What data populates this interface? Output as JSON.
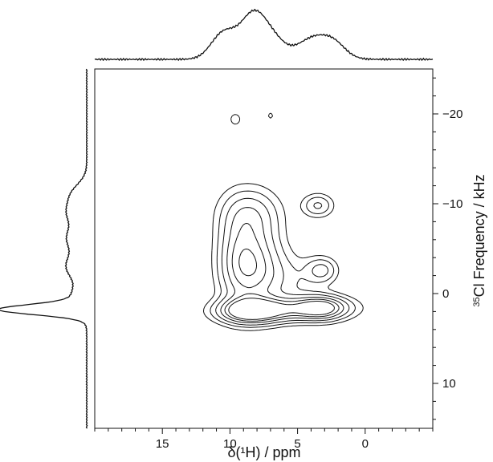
{
  "chart_data": {
    "type": "contour",
    "title": "",
    "xlabel": "δ(¹H) / ppm",
    "ylabel_prefix": "35",
    "ylabel": "Cl Frequency / kHz",
    "xlim": [
      20,
      -5
    ],
    "ylim": [
      -25,
      15
    ],
    "x_ticks": [
      15,
      10,
      5,
      0
    ],
    "x_tick_labels": [
      "15",
      "10",
      "5",
      "0"
    ],
    "y_ticks": [
      -20,
      -10,
      0,
      10
    ],
    "y_tick_labels": [
      "−20",
      "−10",
      "0",
      "10"
    ],
    "grid": false,
    "legend": "none",
    "peaks": [
      {
        "x": 8.3,
        "y": -3.2,
        "sx": 1.4,
        "sy": 3.2,
        "a": 0.55
      },
      {
        "x": 8.6,
        "y": 1.9,
        "sx": 1.4,
        "sy": 0.9,
        "a": 0.55
      },
      {
        "x": 7.6,
        "y": 2.0,
        "sx": 2.3,
        "sy": 0.9,
        "a": 0.35
      },
      {
        "x": 3.2,
        "y": 1.6,
        "sx": 1.2,
        "sy": 0.9,
        "a": 0.5
      },
      {
        "x": 4.3,
        "y": 1.6,
        "sx": 2.4,
        "sy": 0.9,
        "a": 0.35
      },
      {
        "x": 8.5,
        "y": -9.0,
        "sx": 1.5,
        "sy": 2.0,
        "a": 0.3
      },
      {
        "x": 9.6,
        "y": -4.0,
        "sx": 1.0,
        "sy": 3.6,
        "a": 0.22
      },
      {
        "x": 3.2,
        "y": -2.6,
        "sx": 0.8,
        "sy": 1.0,
        "a": 0.3
      },
      {
        "x": 3.5,
        "y": -9.8,
        "sx": 0.8,
        "sy": 0.9,
        "a": 0.3
      },
      {
        "x": 5.6,
        "y": -1.5,
        "sx": 1.6,
        "sy": 2.0,
        "a": 0.15
      },
      {
        "x": 9.6,
        "y": -19.4,
        "sx": 0.3,
        "sy": 0.5,
        "a": 0.18
      },
      {
        "x": 7.0,
        "y": -19.8,
        "sx": 0.2,
        "sy": 0.35,
        "a": 0.14
      }
    ],
    "contour_levels": [
      0.1,
      0.18,
      0.28,
      0.4,
      0.52,
      0.64
    ],
    "projection_top": [
      {
        "x": 10.5,
        "a": 0.55,
        "s": 0.9
      },
      {
        "x": 8.2,
        "a": 1.0,
        "s": 1.0
      },
      {
        "x": 6.6,
        "a": 0.25,
        "s": 0.8
      },
      {
        "x": 3.7,
        "a": 0.48,
        "s": 1.3
      },
      {
        "x": 2.2,
        "a": 0.18,
        "s": 0.8
      }
    ],
    "projection_left": [
      {
        "y": 1.8,
        "a": 1.0,
        "s": 0.55
      },
      {
        "y": 0.5,
        "a": 0.18,
        "s": 1.2
      },
      {
        "y": -3.0,
        "a": 0.25,
        "s": 1.4
      },
      {
        "y": -6.2,
        "a": 0.22,
        "s": 1.2
      },
      {
        "y": -9.0,
        "a": 0.22,
        "s": 1.2
      },
      {
        "y": -11.2,
        "a": 0.16,
        "s": 1.1
      }
    ]
  }
}
